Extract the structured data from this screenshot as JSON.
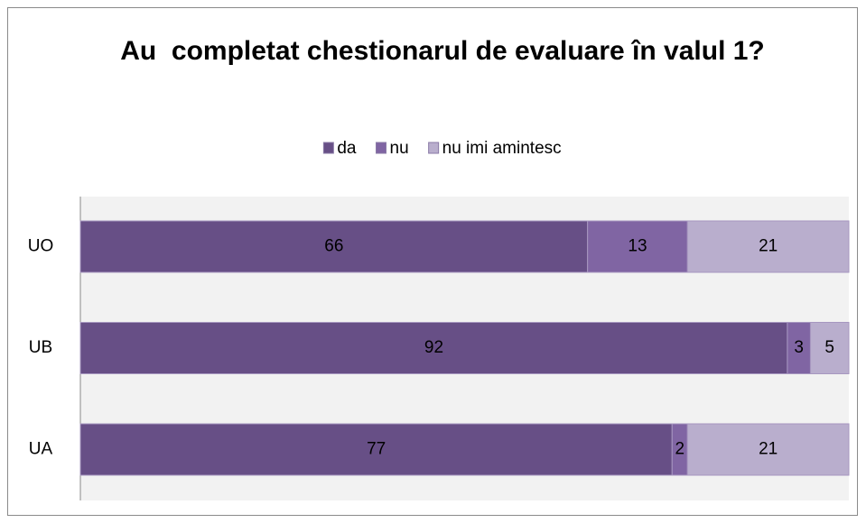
{
  "chart_data": {
    "type": "stacked-bar-horizontal",
    "title": "Au  completat chestionarul de evaluare în valul 1?",
    "categories": [
      "UO",
      "UB",
      "UA"
    ],
    "series": [
      {
        "name": "da",
        "color": "#674f86",
        "values": [
          66,
          92,
          77
        ]
      },
      {
        "name": "nu",
        "color": "#8065a3",
        "values": [
          13,
          3,
          2
        ]
      },
      {
        "name": "nu imi amintesc",
        "color": "#b9aecd",
        "values": [
          21,
          5,
          21
        ]
      }
    ],
    "xlim": [
      0,
      100
    ],
    "legend": "top"
  }
}
